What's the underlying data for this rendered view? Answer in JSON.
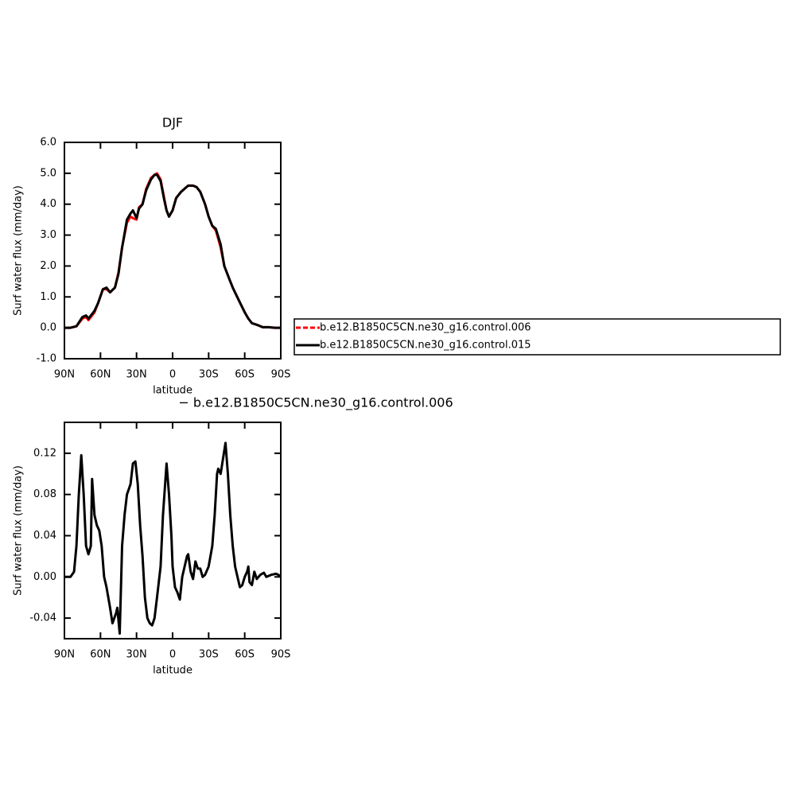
{
  "chart_data": [
    {
      "type": "line",
      "title": "DJF",
      "xlabel": "latitude",
      "ylabel": "Surf water flux (mm/day)",
      "xlim": [
        90,
        -90
      ],
      "xticks": [
        {
          "value": 90,
          "label": "90N"
        },
        {
          "value": 60,
          "label": "60N"
        },
        {
          "value": 30,
          "label": "30N"
        },
        0,
        {
          "value": -30,
          "label": "30S"
        },
        {
          "value": -60,
          "label": "60S"
        },
        {
          "value": -90,
          "label": "90S"
        }
      ],
      "ylim": [
        -1,
        6
      ],
      "yticks": [
        {
          "value": 6,
          "label": "6.0"
        },
        {
          "value": 5,
          "label": "5.0"
        },
        {
          "value": 4,
          "label": "4.0"
        },
        {
          "value": 3,
          "label": "3.0"
        },
        {
          "value": 2,
          "label": "2.0"
        },
        {
          "value": 1,
          "label": "1.0"
        },
        {
          "value": 0,
          "label": "0.0"
        },
        {
          "value": -1,
          "label": "-1.0"
        }
      ],
      "x": [
        90,
        85,
        80,
        75,
        72,
        70,
        65,
        62,
        58,
        55,
        52,
        48,
        45,
        42,
        38,
        35,
        33,
        30,
        28,
        25,
        22,
        18,
        15,
        13,
        10,
        7,
        5,
        3,
        0,
        -3,
        -7,
        -10,
        -13,
        -17,
        -20,
        -23,
        -27,
        -30,
        -33,
        -36,
        -40,
        -43,
        -47,
        -50,
        -55,
        -60,
        -63,
        -66,
        -70,
        -75,
        -80,
        -85,
        -90
      ],
      "series": [
        {
          "name": "b.e12.B1850C5CN.ne30_g16.control.006",
          "color": "#ff0000",
          "dash": true,
          "values": [
            0,
            0,
            0.05,
            0.3,
            0.35,
            0.25,
            0.5,
            0.8,
            1.25,
            1.25,
            1.15,
            1.3,
            1.8,
            2.6,
            3.4,
            3.6,
            3.55,
            3.5,
            3.9,
            4.0,
            4.5,
            4.85,
            4.95,
            5.0,
            4.8,
            4.2,
            3.8,
            3.6,
            3.8,
            4.2,
            4.4,
            4.5,
            4.6,
            4.6,
            4.55,
            4.4,
            4.0,
            3.6,
            3.3,
            3.15,
            2.6,
            2.0,
            1.6,
            1.3,
            0.9,
            0.5,
            0.3,
            0.15,
            0.1,
            0.02,
            0.02,
            0,
            0
          ]
        },
        {
          "name": "b.e12.B1850C5CN.ne30_g16.control.015",
          "color": "#000000",
          "dash": false,
          "values": [
            0,
            0,
            0.05,
            0.35,
            0.4,
            0.3,
            0.55,
            0.8,
            1.25,
            1.3,
            1.15,
            1.3,
            1.75,
            2.6,
            3.5,
            3.7,
            3.8,
            3.55,
            3.85,
            4.0,
            4.45,
            4.8,
            4.95,
            4.95,
            4.75,
            4.15,
            3.8,
            3.6,
            3.8,
            4.2,
            4.4,
            4.5,
            4.6,
            4.6,
            4.55,
            4.4,
            4.0,
            3.6,
            3.3,
            3.2,
            2.7,
            2.0,
            1.6,
            1.3,
            0.9,
            0.5,
            0.3,
            0.15,
            0.1,
            0.02,
            0.02,
            0,
            0
          ]
        }
      ]
    },
    {
      "type": "line",
      "title": "− b.e12.B1850C5CN.ne30_g16.control.006",
      "xlabel": "latitude",
      "ylabel": "Surf water flux (mm/day)",
      "xlim": [
        90,
        -90
      ],
      "xticks": [
        {
          "value": 90,
          "label": "90N"
        },
        {
          "value": 60,
          "label": "60N"
        },
        {
          "value": 30,
          "label": "30N"
        },
        0,
        {
          "value": -30,
          "label": "30S"
        },
        {
          "value": -60,
          "label": "60S"
        },
        {
          "value": -90,
          "label": "90S"
        }
      ],
      "ylim": [
        -0.06,
        0.15
      ],
      "yticks": [
        0.12,
        0.08,
        0.04,
        {
          "value": 0,
          "label": "0.00"
        },
        -0.04
      ],
      "x": [
        90,
        85,
        82,
        80,
        78,
        76,
        74,
        72,
        70,
        68,
        67,
        65,
        63,
        61,
        59,
        57,
        55,
        52,
        50,
        47,
        46,
        44,
        42,
        40,
        38,
        35,
        33,
        31,
        29,
        27,
        25,
        23,
        21,
        19,
        17,
        15,
        13,
        10,
        8,
        5,
        3,
        1,
        0,
        -2,
        -4,
        -6,
        -8,
        -10,
        -12,
        -13,
        -15,
        -17,
        -19,
        -21,
        -23,
        -25,
        -27,
        -30,
        -33,
        -35,
        -37,
        -38,
        -40,
        -44,
        -46,
        -48,
        -50,
        -52,
        -54,
        -56,
        -58,
        -60,
        -62,
        -63,
        -64,
        -66,
        -68,
        -70,
        -73,
        -76,
        -78,
        -82,
        -86,
        -88,
        -90
      ],
      "color": "#000000",
      "values": [
        0,
        0,
        0.005,
        0.03,
        0.08,
        0.118,
        0.08,
        0.03,
        0.022,
        0.03,
        0.095,
        0.06,
        0.05,
        0.045,
        0.03,
        0,
        -0.01,
        -0.03,
        -0.045,
        -0.035,
        -0.03,
        -0.055,
        0.03,
        0.06,
        0.08,
        0.09,
        0.11,
        0.112,
        0.09,
        0.05,
        0.02,
        -0.02,
        -0.04,
        -0.045,
        -0.047,
        -0.04,
        -0.02,
        0.01,
        0.06,
        0.11,
        0.08,
        0.04,
        0.01,
        -0.01,
        -0.015,
        -0.022,
        0,
        0.01,
        0.02,
        0.022,
        0.005,
        -0.002,
        0.015,
        0.008,
        0.008,
        0,
        0.002,
        0.01,
        0.03,
        0.06,
        0.1,
        0.105,
        0.1,
        0.13,
        0.1,
        0.06,
        0.03,
        0.01,
        0,
        -0.01,
        -0.008,
        0,
        0.005,
        0.01,
        -0.005,
        -0.008,
        0.005,
        -0.002,
        0.002,
        0.004,
        0,
        0.002,
        0.003,
        0.002,
        0
      ]
    }
  ]
}
